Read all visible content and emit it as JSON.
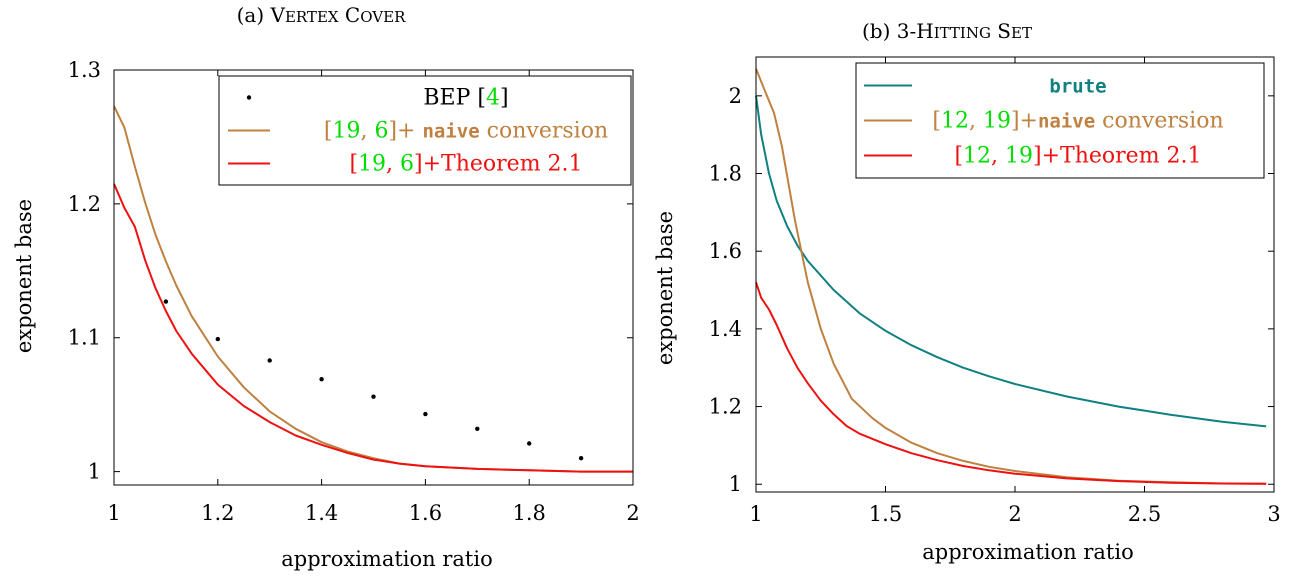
{
  "figure": {
    "panels": [
      {
        "caption_prefix": "(a) ",
        "caption_name": "Vertex Cover"
      },
      {
        "caption_prefix": "(b) ",
        "caption_name": "3-Hitting Set"
      }
    ]
  },
  "chart_data": [
    {
      "type": "line",
      "title": "(a) Vertex Cover",
      "xlabel": "approximation ratio",
      "ylabel": "exponent base",
      "xlim": [
        1,
        2
      ],
      "ylim": [
        0.99,
        1.3
      ],
      "xticks": [
        1,
        1.2,
        1.4,
        1.6,
        1.8,
        2
      ],
      "xtick_labels": [
        "1",
        "1.2",
        "1.4",
        "1.6",
        "1.8",
        "2"
      ],
      "yticks": [
        1,
        1.1,
        1.2,
        1.3
      ],
      "ytick_labels": [
        "1",
        "1.1",
        "1.2",
        "1.3"
      ],
      "legend_position": "top-right",
      "series": [
        {
          "key": "bep",
          "marker": "dot",
          "color": "#000000",
          "legend": [
            {
              "t": "BEP [",
              "c": "#000000"
            },
            {
              "t": "4",
              "c": "#00dd00"
            },
            {
              "t": "]",
              "c": "#000000"
            }
          ],
          "x": [
            1.1,
            1.2,
            1.3,
            1.4,
            1.5,
            1.6,
            1.7,
            1.8,
            1.9
          ],
          "y": [
            1.127,
            1.099,
            1.083,
            1.069,
            1.056,
            1.043,
            1.032,
            1.021,
            1.01
          ]
        },
        {
          "key": "naive",
          "marker": "line",
          "color": "#bf8040",
          "legend": [
            {
              "t": "[",
              "c": "#bf8040"
            },
            {
              "t": "19",
              "c": "#00dd00"
            },
            {
              "t": ", ",
              "c": "#bf8040"
            },
            {
              "t": "6",
              "c": "#00dd00"
            },
            {
              "t": "]+ ",
              "c": "#bf8040"
            },
            {
              "t": "naive",
              "c": "#bf8040",
              "mono": true
            },
            {
              "t": " conversion",
              "c": "#bf8040"
            }
          ],
          "x": [
            1.0,
            1.02,
            1.04,
            1.06,
            1.08,
            1.1,
            1.12,
            1.15,
            1.2,
            1.25,
            1.3,
            1.35,
            1.4,
            1.45,
            1.5,
            1.55,
            1.6,
            1.7,
            1.8,
            1.9,
            2.0
          ],
          "y": [
            1.273,
            1.257,
            1.228,
            1.201,
            1.177,
            1.157,
            1.139,
            1.116,
            1.086,
            1.063,
            1.045,
            1.032,
            1.022,
            1.015,
            1.01,
            1.006,
            1.004,
            1.002,
            1.001,
            1.0,
            1.0
          ]
        },
        {
          "key": "thm",
          "marker": "line",
          "color": "#ee1111",
          "legend": [
            {
              "t": "[",
              "c": "#ee1111"
            },
            {
              "t": "19",
              "c": "#00dd00"
            },
            {
              "t": ", ",
              "c": "#ee1111"
            },
            {
              "t": "6",
              "c": "#00dd00"
            },
            {
              "t": "]+Theorem 2.1",
              "c": "#ee1111"
            }
          ],
          "x": [
            1.0,
            1.02,
            1.04,
            1.06,
            1.08,
            1.1,
            1.12,
            1.15,
            1.2,
            1.25,
            1.3,
            1.35,
            1.4,
            1.45,
            1.5,
            1.55,
            1.6,
            1.7,
            1.8,
            1.9,
            2.0
          ],
          "y": [
            1.215,
            1.197,
            1.183,
            1.158,
            1.137,
            1.12,
            1.105,
            1.088,
            1.065,
            1.049,
            1.037,
            1.027,
            1.02,
            1.014,
            1.009,
            1.006,
            1.004,
            1.002,
            1.001,
            1.0,
            1.0
          ]
        }
      ]
    },
    {
      "type": "line",
      "title": "(b) 3-Hitting Set",
      "xlabel": "approximation ratio",
      "ylabel": "exponent base",
      "xlim": [
        1,
        3
      ],
      "ylim": [
        0.98,
        2.1
      ],
      "xticks": [
        1,
        1.5,
        2,
        2.5,
        3
      ],
      "xtick_labels": [
        "1",
        "1.5",
        "2",
        "2.5",
        "3"
      ],
      "yticks": [
        1,
        1.2,
        1.4,
        1.6,
        1.8,
        2
      ],
      "ytick_labels": [
        "1",
        "1.2",
        "1.4",
        "1.6",
        "1.8",
        "2"
      ],
      "legend_position": "top-right",
      "series": [
        {
          "key": "brute",
          "marker": "line",
          "color": "#108080",
          "legend": [
            {
              "t": "brute",
              "c": "#108080",
              "mono": true
            }
          ],
          "x": [
            1.0,
            1.02,
            1.05,
            1.08,
            1.12,
            1.16,
            1.2,
            1.3,
            1.4,
            1.5,
            1.6,
            1.7,
            1.8,
            1.9,
            2.0,
            2.2,
            2.4,
            2.6,
            2.8,
            2.97
          ],
          "y": [
            2.0,
            1.9,
            1.8,
            1.73,
            1.665,
            1.615,
            1.575,
            1.5,
            1.44,
            1.395,
            1.358,
            1.327,
            1.3,
            1.278,
            1.258,
            1.226,
            1.2,
            1.179,
            1.161,
            1.149
          ]
        },
        {
          "key": "naive",
          "marker": "line",
          "color": "#bf8040",
          "legend": [
            {
              "t": "[",
              "c": "#bf8040"
            },
            {
              "t": "12",
              "c": "#00dd00"
            },
            {
              "t": ", ",
              "c": "#bf8040"
            },
            {
              "t": "19",
              "c": "#00dd00"
            },
            {
              "t": "]+",
              "c": "#bf8040"
            },
            {
              "t": "naive",
              "c": "#bf8040",
              "mono": true
            },
            {
              "t": " conversion",
              "c": "#bf8040"
            }
          ],
          "x": [
            1.0,
            1.03,
            1.07,
            1.1,
            1.15,
            1.2,
            1.25,
            1.3,
            1.37,
            1.45,
            1.5,
            1.6,
            1.7,
            1.8,
            1.9,
            2.0,
            2.2,
            2.4,
            2.6,
            2.8,
            2.97
          ],
          "y": [
            2.07,
            2.02,
            1.955,
            1.87,
            1.68,
            1.52,
            1.4,
            1.31,
            1.22,
            1.17,
            1.145,
            1.107,
            1.08,
            1.06,
            1.045,
            1.034,
            1.018,
            1.009,
            1.005,
            1.002,
            1.001
          ]
        },
        {
          "key": "thm",
          "marker": "line",
          "color": "#ee1111",
          "legend": [
            {
              "t": "[",
              "c": "#ee1111"
            },
            {
              "t": "12",
              "c": "#00dd00"
            },
            {
              "t": ", ",
              "c": "#ee1111"
            },
            {
              "t": "19",
              "c": "#00dd00"
            },
            {
              "t": "]+Theorem 2.1",
              "c": "#ee1111"
            }
          ],
          "x": [
            1.0,
            1.02,
            1.05,
            1.08,
            1.12,
            1.16,
            1.2,
            1.25,
            1.3,
            1.35,
            1.4,
            1.5,
            1.6,
            1.7,
            1.8,
            1.9,
            2.0,
            2.2,
            2.4,
            2.6,
            2.8,
            2.97
          ],
          "y": [
            1.52,
            1.48,
            1.45,
            1.41,
            1.35,
            1.3,
            1.26,
            1.215,
            1.18,
            1.15,
            1.13,
            1.103,
            1.08,
            1.062,
            1.047,
            1.036,
            1.027,
            1.015,
            1.008,
            1.004,
            1.002,
            1.001
          ]
        }
      ]
    }
  ]
}
